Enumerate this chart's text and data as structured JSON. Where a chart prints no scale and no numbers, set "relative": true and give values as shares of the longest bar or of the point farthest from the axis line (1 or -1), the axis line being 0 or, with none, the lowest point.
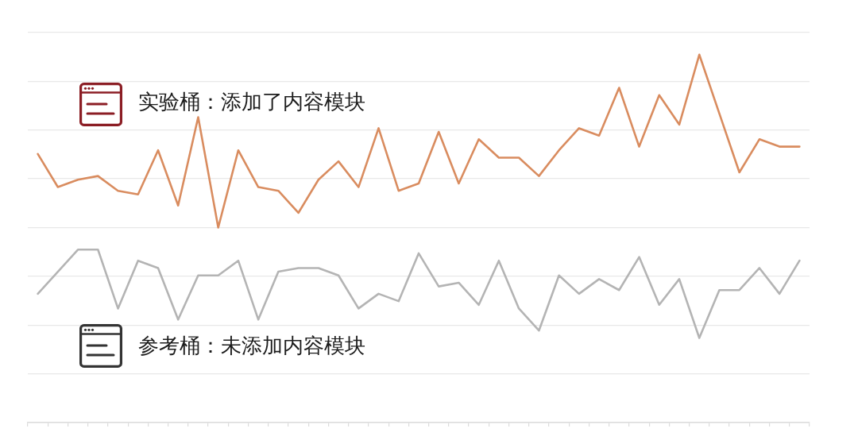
{
  "chart_data": {
    "type": "line",
    "relative": true,
    "grid": "y",
    "categories": [
      null,
      null,
      null,
      null,
      null,
      null,
      null,
      null,
      null,
      null,
      null,
      null,
      null,
      null,
      null,
      null,
      null,
      null,
      null,
      null,
      null,
      null,
      null,
      null,
      null,
      null,
      null,
      null,
      null,
      null,
      null,
      null,
      null,
      null,
      null,
      null,
      null,
      null,
      null
    ],
    "series": [
      {
        "name": "实验桶：添加了内容模块",
        "color": "#d98c5f",
        "values": [
          0.73,
          0.64,
          0.66,
          0.67,
          0.63,
          0.62,
          0.74,
          0.59,
          0.83,
          0.53,
          0.74,
          0.64,
          0.63,
          0.57,
          0.66,
          0.71,
          0.64,
          0.8,
          0.63,
          0.65,
          0.79,
          0.65,
          0.77,
          0.72,
          0.72,
          0.67,
          0.74,
          0.8,
          0.78,
          0.91,
          0.75,
          0.89,
          0.81,
          1,
          0.84,
          0.68,
          0.77,
          0.75,
          0.75
        ]
      },
      {
        "name": "参考桶：未添加内容模块",
        "color": "#b4b4b4",
        "values": [
          0.35,
          0.41,
          0.47,
          0.47,
          0.31,
          0.44,
          0.42,
          0.28,
          0.4,
          0.4,
          0.44,
          0.28,
          0.41,
          0.42,
          0.42,
          0.4,
          0.31,
          0.35,
          0.33,
          0.46,
          0.37,
          0.38,
          0.32,
          0.44,
          0.31,
          0.25,
          0.4,
          0.35,
          0.39,
          0.36,
          0.45,
          0.32,
          0.39,
          0.23,
          0.36,
          0.36,
          0.42,
          0.35,
          0.44
        ]
      }
    ]
  }
}
